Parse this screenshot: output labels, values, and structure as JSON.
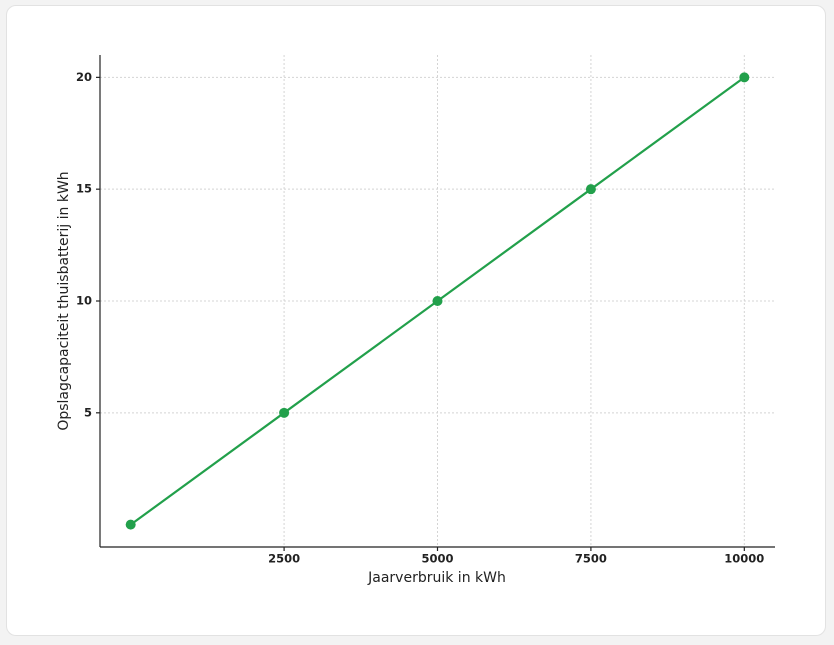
{
  "chart_data": {
    "type": "line",
    "x_label": "Jaarverbruik in kWh",
    "y_label": "Opslagcapaciteit thuisbatterij in kWh",
    "x": [
      0,
      2500,
      5000,
      7500,
      10000
    ],
    "series": [
      {
        "name": "Opslagcapaciteit",
        "color": "#22a04b",
        "values": [
          0,
          5,
          10,
          15,
          20
        ]
      }
    ],
    "xlim": [
      -500,
      10500
    ],
    "xticks": [
      2500,
      5000,
      7500,
      10000
    ],
    "ylim": [
      -1,
      21
    ],
    "yticks": [
      5,
      10,
      15,
      20
    ],
    "grid": true
  }
}
